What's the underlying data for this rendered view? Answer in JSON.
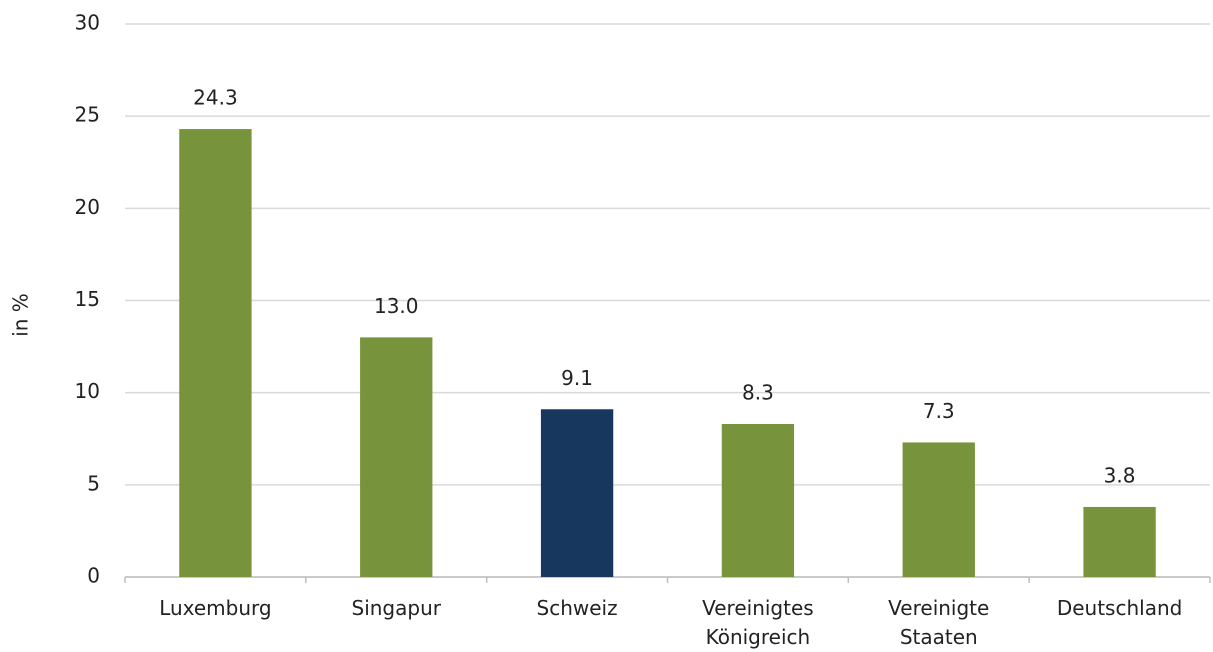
{
  "chart_data": {
    "type": "bar",
    "y_label": "in %",
    "categories": [
      "Luxemburg",
      "Singapur",
      "Schweiz",
      "Vereinigtes Königreich",
      "Vereinigte Staaten",
      "Deutschland"
    ],
    "values": [
      24.3,
      13.0,
      9.1,
      8.3,
      7.3,
      3.8
    ],
    "value_labels": [
      "24.3",
      "13.0",
      "9.1",
      "8.3",
      "7.3",
      "3.8"
    ],
    "colors": [
      "#77933c",
      "#77933c",
      "#17375e",
      "#77933c",
      "#77933c",
      "#77933c"
    ],
    "ylim": [
      0,
      30
    ],
    "yticks": [
      0,
      5,
      10,
      15,
      20,
      25,
      30
    ],
    "grid": true
  }
}
